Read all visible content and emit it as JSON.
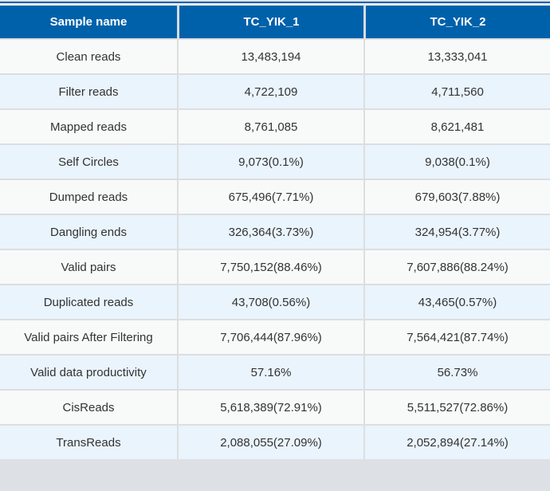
{
  "colors": {
    "header_bg": "#0061ab",
    "header_text": "#ffffff",
    "row_odd_bg": "#f8f9f9",
    "row_even_bg": "#eaf4fd",
    "border": "#dcdedf",
    "page_bg": "#dde1e5",
    "body_text": "#333333"
  },
  "table": {
    "columns": [
      "Sample name",
      "TC_YIK_1",
      "TC_YIK_2"
    ],
    "rows": [
      [
        "Clean reads",
        "13,483,194",
        "13,333,041"
      ],
      [
        "Filter reads",
        "4,722,109",
        "4,711,560"
      ],
      [
        "Mapped reads",
        "8,761,085",
        "8,621,481"
      ],
      [
        "Self Circles",
        "9,073(0.1%)",
        "9,038(0.1%)"
      ],
      [
        "Dumped reads",
        "675,496(7.71%)",
        "679,603(7.88%)"
      ],
      [
        "Dangling ends",
        "326,364(3.73%)",
        "324,954(3.77%)"
      ],
      [
        "Valid pairs",
        "7,750,152(88.46%)",
        "7,607,886(88.24%)"
      ],
      [
        "Duplicated reads",
        "43,708(0.56%)",
        "43,465(0.57%)"
      ],
      [
        "Valid pairs After Filtering",
        "7,706,444(87.96%)",
        "7,564,421(87.74%)"
      ],
      [
        "Valid data productivity",
        "57.16%",
        "56.73%"
      ],
      [
        "CisReads",
        "5,618,389(72.91%)",
        "5,511,527(72.86%)"
      ],
      [
        "TransReads",
        "2,088,055(27.09%)",
        "2,052,894(27.14%)"
      ]
    ]
  }
}
